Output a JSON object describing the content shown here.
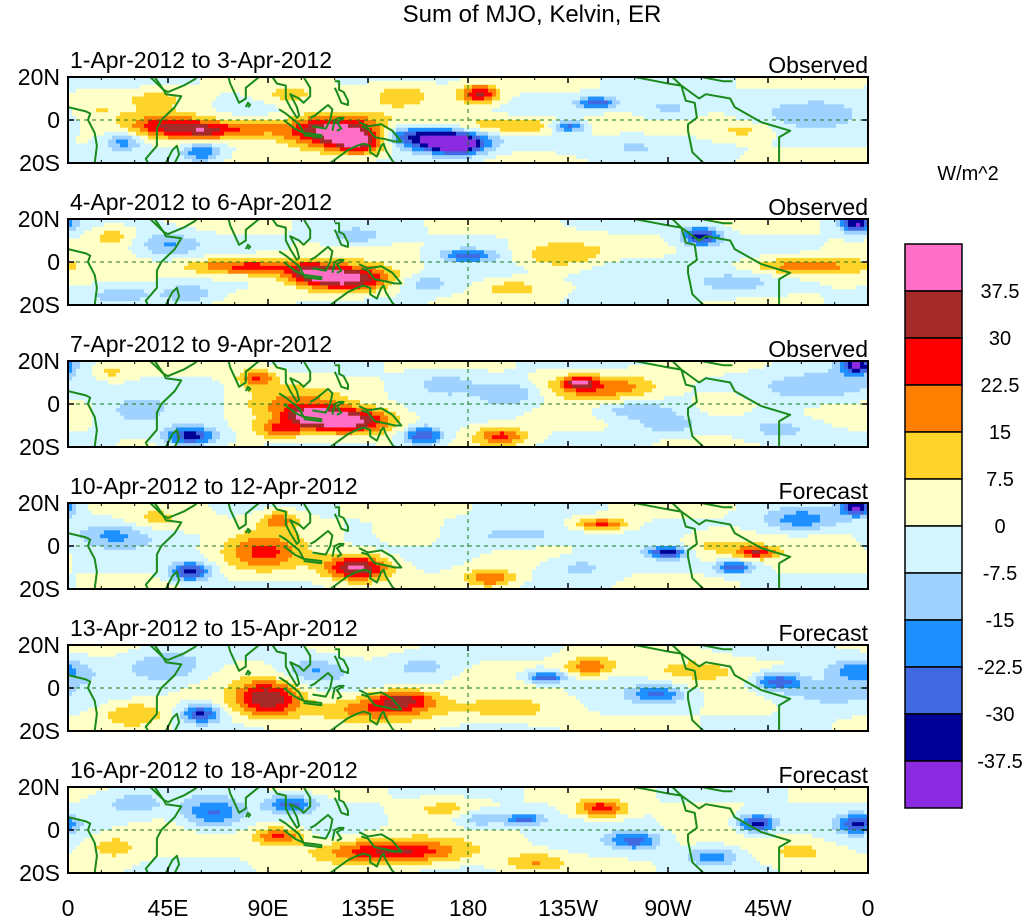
{
  "chart_data": {
    "type": "heatmap",
    "title": "Sum of MJO, Kelvin, ER",
    "units": "W/m^2",
    "lat_range": [
      -20,
      20
    ],
    "lon_range": [
      0,
      360
    ],
    "x_ticks": [
      "0",
      "45E",
      "90E",
      "135E",
      "180",
      "135W",
      "90W",
      "45W",
      "0"
    ],
    "y_ticks": [
      "20N",
      "0",
      "20S"
    ],
    "colorbar": {
      "levels": [
        "37.5",
        "30",
        "22.5",
        "15",
        "7.5",
        "0",
        "-7.5",
        "-15",
        "-22.5",
        "-30",
        "-37.5"
      ],
      "colors": [
        "#ff6ec7",
        "#a52a2a",
        "#ff0000",
        "#ff7f00",
        "#ffd42a",
        "#ffffc8",
        "#d2f5ff",
        "#a0d2ff",
        "#1e90ff",
        "#4169e1",
        "#000096",
        "#8a2be2"
      ]
    },
    "panels": [
      {
        "date_range": "1-Apr-2012 to 3-Apr-2012",
        "status": "Observed",
        "blobs": [
          [
            45,
            -3,
            12,
            4,
            28
          ],
          [
            62,
            -5,
            8,
            3,
            24
          ],
          [
            80,
            -4,
            10,
            3,
            20
          ],
          [
            118,
            -5,
            16,
            5,
            42
          ],
          [
            132,
            -10,
            10,
            4,
            40
          ],
          [
            160,
            -8,
            20,
            4,
            -42
          ],
          [
            175,
            -12,
            8,
            3,
            -40
          ],
          [
            185,
            12,
            6,
            3,
            32
          ],
          [
            200,
            -3,
            25,
            3,
            20
          ],
          [
            40,
            10,
            10,
            3,
            10
          ],
          [
            25,
            -10,
            6,
            3,
            -20
          ],
          [
            60,
            -15,
            6,
            3,
            -22
          ],
          [
            225,
            -3,
            6,
            2,
            -32
          ],
          [
            238,
            8,
            6,
            2,
            -30
          ],
          [
            270,
            5,
            10,
            4,
            -12
          ],
          [
            305,
            -5,
            10,
            3,
            10
          ],
          [
            340,
            3,
            20,
            5,
            -10
          ],
          [
            10,
            5,
            10,
            4,
            8
          ],
          [
            100,
            12,
            8,
            3,
            12
          ],
          [
            150,
            12,
            10,
            4,
            12
          ],
          [
            255,
            -12,
            20,
            4,
            -8
          ]
        ]
      },
      {
        "date_range": "4-Apr-2012 to 6-Apr-2012",
        "status": "Observed",
        "blobs": [
          [
            80,
            -2,
            20,
            3,
            28
          ],
          [
            125,
            -8,
            14,
            4,
            40
          ],
          [
            110,
            -5,
            8,
            3,
            22
          ],
          [
            160,
            -10,
            10,
            3,
            -12
          ],
          [
            180,
            3,
            8,
            2,
            -25
          ],
          [
            222,
            3,
            14,
            5,
            15
          ],
          [
            250,
            -3,
            20,
            4,
            -10
          ],
          [
            285,
            12,
            6,
            3,
            -35
          ],
          [
            330,
            -2,
            18,
            3,
            22
          ],
          [
            355,
            18,
            5,
            3,
            -38
          ],
          [
            45,
            8,
            10,
            4,
            -15
          ],
          [
            20,
            12,
            6,
            3,
            12
          ],
          [
            25,
            -15,
            12,
            3,
            -10
          ],
          [
            130,
            12,
            10,
            3,
            -12
          ],
          [
            200,
            -12,
            10,
            3,
            12
          ],
          [
            55,
            -15,
            8,
            3,
            -15
          ],
          [
            300,
            -10,
            15,
            4,
            -10
          ]
        ]
      },
      {
        "date_range": "7-Apr-2012 to 9-Apr-2012",
        "status": "Observed",
        "blobs": [
          [
            100,
            0,
            16,
            6,
            15
          ],
          [
            125,
            -8,
            14,
            4,
            42
          ],
          [
            110,
            -5,
            8,
            3,
            22
          ],
          [
            160,
            -15,
            6,
            3,
            -32
          ],
          [
            55,
            -15,
            8,
            3,
            -35
          ],
          [
            20,
            15,
            6,
            3,
            10
          ],
          [
            240,
            8,
            18,
            4,
            20
          ],
          [
            230,
            10,
            5,
            2,
            25
          ],
          [
            195,
            -15,
            8,
            3,
            25
          ],
          [
            200,
            5,
            10,
            4,
            -15
          ],
          [
            295,
            0,
            10,
            4,
            10
          ],
          [
            340,
            8,
            20,
            5,
            -15
          ],
          [
            355,
            18,
            5,
            3,
            -38
          ],
          [
            255,
            -3,
            12,
            3,
            -15
          ],
          [
            270,
            -10,
            10,
            3,
            -12
          ],
          [
            85,
            12,
            6,
            3,
            22
          ],
          [
            95,
            -12,
            8,
            3,
            20
          ],
          [
            30,
            -3,
            10,
            5,
            -10
          ],
          [
            170,
            10,
            10,
            4,
            -10
          ],
          [
            320,
            -12,
            12,
            4,
            -10
          ]
        ]
      },
      {
        "date_range": "10-Apr-2012 to 12-Apr-2012",
        "status": "Forecast",
        "blobs": [
          [
            88,
            -3,
            12,
            6,
            22
          ],
          [
            130,
            -10,
            10,
            4,
            40
          ],
          [
            55,
            -12,
            6,
            3,
            -35
          ],
          [
            20,
            5,
            12,
            4,
            -15
          ],
          [
            270,
            -3,
            6,
            2,
            -35
          ],
          [
            240,
            10,
            8,
            2,
            25
          ],
          [
            290,
            0,
            12,
            4,
            12
          ],
          [
            310,
            -3,
            6,
            2,
            28
          ],
          [
            190,
            -15,
            8,
            3,
            22
          ],
          [
            205,
            5,
            20,
            4,
            -12
          ],
          [
            330,
            12,
            12,
            4,
            -20
          ],
          [
            355,
            18,
            5,
            3,
            -38
          ],
          [
            300,
            -10,
            6,
            2,
            -30
          ],
          [
            95,
            12,
            6,
            3,
            20
          ],
          [
            40,
            12,
            10,
            4,
            10
          ],
          [
            155,
            5,
            10,
            4,
            10
          ],
          [
            230,
            -10,
            10,
            4,
            -10
          ]
        ]
      },
      {
        "date_range": "13-Apr-2012 to 15-Apr-2012",
        "status": "Forecast",
        "blobs": [
          [
            90,
            -5,
            10,
            6,
            35
          ],
          [
            60,
            -12,
            6,
            3,
            -32
          ],
          [
            140,
            -10,
            20,
            4,
            22
          ],
          [
            150,
            -5,
            10,
            3,
            28
          ],
          [
            215,
            5,
            6,
            2,
            -30
          ],
          [
            235,
            10,
            8,
            3,
            22
          ],
          [
            265,
            -3,
            8,
            3,
            -22
          ],
          [
            320,
            3,
            8,
            3,
            -30
          ],
          [
            280,
            8,
            15,
            4,
            12
          ],
          [
            30,
            -12,
            10,
            4,
            15
          ],
          [
            340,
            -3,
            15,
            4,
            -12
          ],
          [
            110,
            8,
            10,
            4,
            -15
          ],
          [
            45,
            10,
            12,
            5,
            -15
          ],
          [
            200,
            -10,
            15,
            4,
            10
          ],
          [
            355,
            8,
            10,
            4,
            -20
          ],
          [
            160,
            10,
            10,
            4,
            -10
          ]
        ]
      },
      {
        "date_range": "16-Apr-2012 to 18-Apr-2012",
        "status": "Forecast",
        "blobs": [
          [
            145,
            -10,
            22,
            4,
            32
          ],
          [
            95,
            -3,
            8,
            3,
            25
          ],
          [
            65,
            8,
            10,
            5,
            -25
          ],
          [
            100,
            12,
            8,
            3,
            -25
          ],
          [
            310,
            3,
            6,
            3,
            -35
          ],
          [
            240,
            10,
            8,
            3,
            28
          ],
          [
            255,
            -5,
            8,
            3,
            -25
          ],
          [
            210,
            -15,
            10,
            3,
            15
          ],
          [
            205,
            5,
            6,
            2,
            -25
          ],
          [
            355,
            3,
            6,
            3,
            -30
          ],
          [
            20,
            -8,
            8,
            4,
            12
          ],
          [
            290,
            -12,
            8,
            3,
            -20
          ],
          [
            185,
            5,
            8,
            3,
            -15
          ],
          [
            330,
            -10,
            12,
            4,
            10
          ],
          [
            30,
            12,
            10,
            4,
            -12
          ],
          [
            170,
            10,
            10,
            3,
            10
          ]
        ]
      }
    ]
  }
}
